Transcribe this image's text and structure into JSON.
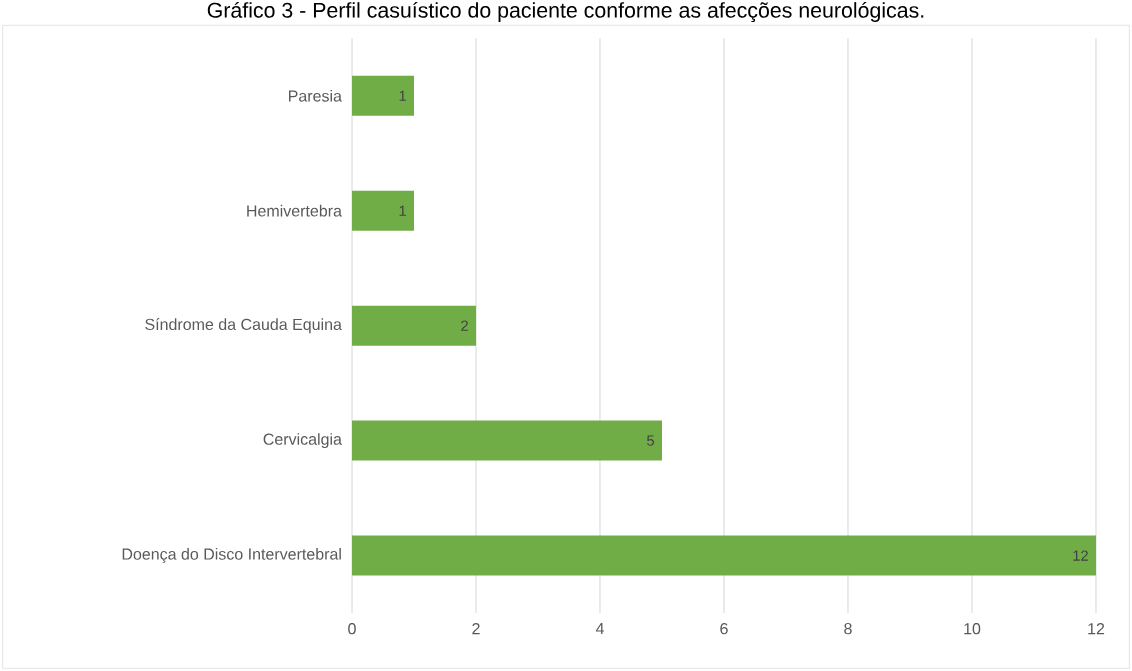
{
  "chart_data": {
    "type": "bar",
    "orientation": "horizontal",
    "title": "Gráfico 3 - Perfil casuístico do paciente conforme as afecções neurológicas.",
    "categories": [
      "Paresia",
      "Hemivertebra",
      "Síndrome da Cauda Equina",
      "Cervicalgia",
      "Doença do Disco Intervertebral"
    ],
    "values": [
      1,
      1,
      2,
      5,
      12
    ],
    "color": "#70ad47",
    "data_labels": true,
    "xlim": [
      0,
      12
    ],
    "xticks": [
      0,
      2,
      4,
      6,
      8,
      10,
      12
    ],
    "grid": "x"
  }
}
